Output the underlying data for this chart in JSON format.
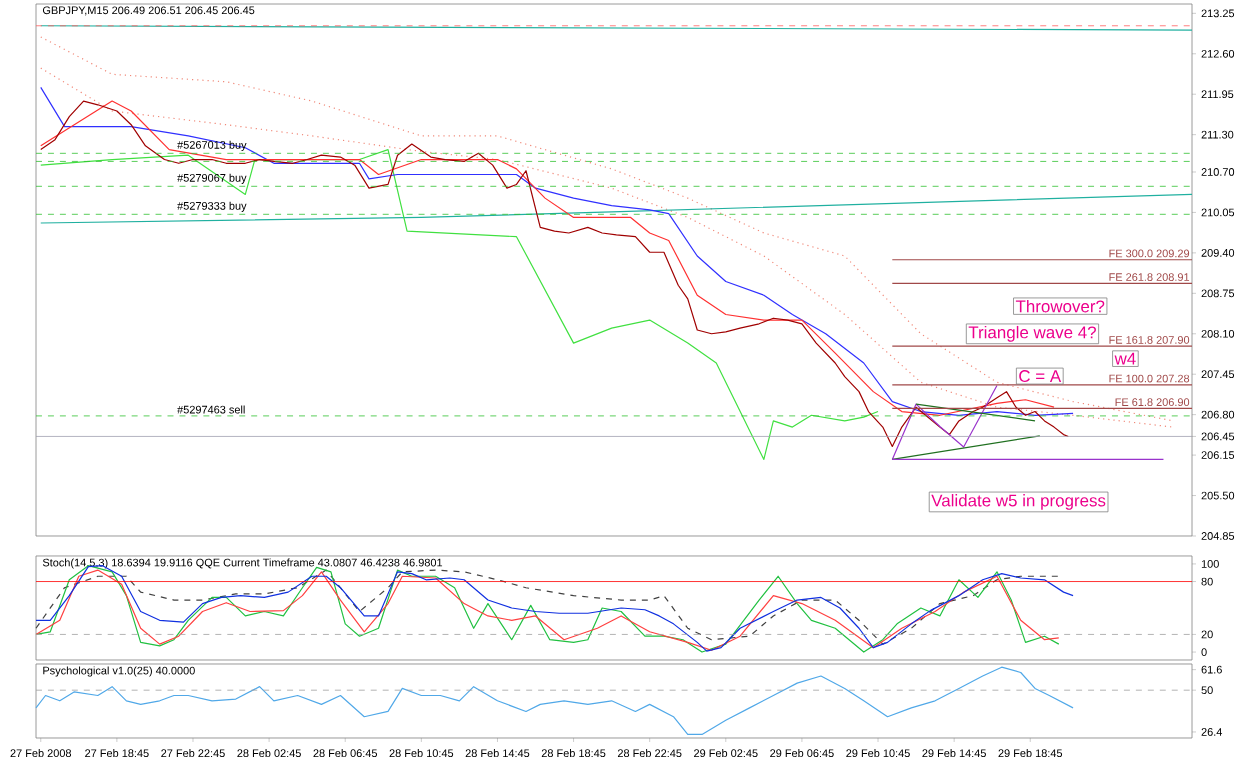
{
  "chart_data": [
    {
      "type": "line",
      "title": "GBPJPY,M15 206.49 206.51 206.45 206.45",
      "xlim": [
        "2008-02-27T14:30",
        "2008-03-01T03:15"
      ],
      "ylim": [
        204.85,
        213.4
      ],
      "tick_labels": "y",
      "yticks": [
        213.25,
        {
          "value": 212.6,
          "label": "212.60"
        },
        211.95,
        {
          "value": 211.3,
          "label": "211.30"
        },
        {
          "value": 210.7,
          "label": "210.70"
        },
        210.05,
        {
          "value": 209.4,
          "label": "209.40"
        },
        208.75,
        {
          "value": 208.1,
          "label": "208.10"
        },
        207.45,
        {
          "value": 206.8,
          "label": "206.80"
        },
        206.45,
        206.15,
        {
          "value": 205.5,
          "label": "205.50"
        },
        204.85
      ],
      "series": [
        {
          "color": "#f08878",
          "line_style": "dotted",
          "x": [
            "2008-02-27T14:45",
            "2008-02-27T18:30",
            "2008-02-28T00:30",
            "2008-02-28T05:00",
            "2008-02-28T10:45",
            "2008-02-28T14:45",
            "2008-02-28T20:45",
            "2008-02-29T00:45",
            "2008-02-29T04:45",
            "2008-02-29T09:00",
            "2008-02-29T13:00",
            "2008-02-29T17:00",
            "2008-02-29T21:00",
            "2008-03-01T02:15"
          ],
          "values": [
            212.87,
            212.27,
            212.15,
            211.84,
            211.28,
            211.28,
            210.75,
            210.28,
            209.72,
            209.35,
            208.1,
            207.32,
            207.01,
            206.7
          ]
        },
        {
          "color": "#f08878",
          "line_style": "dotted",
          "x": [
            "2008-02-27T14:45",
            "2008-02-27T18:30",
            "2008-02-28T00:30",
            "2008-02-28T05:00",
            "2008-02-28T10:45",
            "2008-02-28T14:45",
            "2008-02-28T20:45",
            "2008-02-29T00:45",
            "2008-02-29T04:45",
            "2008-02-29T09:00",
            "2008-02-29T13:00",
            "2008-02-29T17:00",
            "2008-02-29T21:00",
            "2008-03-01T02:15"
          ],
          "values": [
            212.37,
            211.68,
            211.46,
            211.28,
            211.03,
            210.9,
            210.44,
            209.97,
            209.35,
            208.41,
            207.32,
            206.92,
            206.79,
            206.6
          ]
        },
        {
          "color": "#20b0a0",
          "x": [
            "2008-02-27T14:45",
            "2008-02-28T10:45",
            "2008-02-28T20:45",
            "2008-03-01T03:15"
          ],
          "values": [
            209.88,
            209.97,
            210.06,
            210.34
          ]
        },
        {
          "color": "#20b0a0",
          "x": [
            "2008-02-27T14:45",
            "2008-03-01T03:15"
          ],
          "values": [
            213.05,
            212.98
          ]
        },
        {
          "color": "#40e040",
          "x": [
            "2008-02-27T14:45",
            "2008-02-27T18:30",
            "2008-02-27T22:30",
            "2008-02-28T01:30",
            "2008-02-28T02:00",
            "2008-02-28T07:30",
            "2008-02-28T09:00",
            "2008-02-28T10:00",
            "2008-02-28T15:45",
            "2008-02-28T18:45",
            "2008-02-28T20:45",
            "2008-02-28T22:45",
            "2008-02-29T00:45",
            "2008-02-29T02:15",
            "2008-02-29T03:15",
            "2008-02-29T04:45",
            "2008-02-29T05:15",
            "2008-02-29T06:15",
            "2008-02-29T07:15",
            "2008-02-29T09:00",
            "2008-02-29T10:00",
            "2008-02-29T10:45"
          ],
          "values": [
            210.81,
            210.9,
            210.97,
            210.34,
            210.9,
            210.9,
            211.06,
            209.75,
            209.66,
            207.95,
            208.19,
            208.32,
            207.95,
            207.63,
            207.01,
            206.08,
            206.7,
            206.6,
            206.79,
            206.7,
            206.76,
            206.85
          ]
        },
        {
          "color": "#3030ff",
          "x": [
            "2008-02-27T14:45",
            "2008-02-27T16:00",
            "2008-02-27T19:30",
            "2008-02-27T22:30",
            "2008-02-28T01:30",
            "2008-02-28T03:00",
            "2008-02-28T07:30",
            "2008-02-28T08:00",
            "2008-02-28T09:30",
            "2008-02-28T15:45",
            "2008-02-28T16:45",
            "2008-02-28T18:45",
            "2008-02-28T20:45",
            "2008-02-28T22:45",
            "2008-02-28T23:45",
            "2008-02-29T01:15",
            "2008-02-29T02:45",
            "2008-02-29T04:45",
            "2008-02-29T06:15",
            "2008-02-29T08:00",
            "2008-02-29T10:00",
            "2008-02-29T11:30",
            "2008-02-29T13:00",
            "2008-02-29T15:00",
            "2008-02-29T17:00",
            "2008-02-29T19:00",
            "2008-02-29T21:00"
          ],
          "values": [
            212.06,
            211.43,
            211.43,
            211.28,
            211.09,
            210.84,
            210.84,
            210.59,
            210.66,
            210.66,
            210.44,
            210.28,
            210.16,
            210.09,
            210.03,
            209.35,
            208.94,
            208.72,
            208.41,
            208.1,
            207.63,
            207.01,
            206.85,
            206.79,
            206.85,
            206.79,
            206.82
          ]
        },
        {
          "color": "#ff3030",
          "x": [
            "2008-02-27T14:45",
            "2008-02-27T18:30",
            "2008-02-27T19:30",
            "2008-02-27T21:30",
            "2008-02-28T00:30",
            "2008-02-28T07:30",
            "2008-02-28T08:30",
            "2008-02-28T10:45",
            "2008-02-28T14:45",
            "2008-02-28T15:45",
            "2008-02-28T17:15",
            "2008-02-28T18:45",
            "2008-02-28T21:45",
            "2008-02-28T22:45",
            "2008-02-28T23:45",
            "2008-02-29T01:15",
            "2008-02-29T02:45",
            "2008-02-29T04:45",
            "2008-02-29T06:45",
            "2008-02-29T08:30",
            "2008-02-29T10:30",
            "2008-02-29T12:00",
            "2008-02-29T14:00",
            "2008-02-29T17:00",
            "2008-02-29T18:30",
            "2008-02-29T20:00"
          ],
          "values": [
            211.12,
            211.84,
            211.68,
            211.06,
            210.9,
            210.9,
            210.66,
            210.9,
            210.9,
            210.75,
            210.28,
            209.97,
            209.97,
            209.72,
            209.6,
            208.72,
            208.41,
            208.32,
            208.32,
            207.79,
            207.17,
            206.85,
            206.79,
            206.98,
            207.04,
            206.92
          ]
        },
        {
          "color": "#a00000",
          "x": [
            "2008-02-27T14:45",
            "2008-02-27T15:30",
            "2008-02-27T16:15",
            "2008-02-27T17:00",
            "2008-02-27T17:45",
            "2008-02-27T18:45",
            "2008-02-27T19:30",
            "2008-02-27T20:15",
            "2008-02-27T21:15",
            "2008-02-27T22:00",
            "2008-02-27T22:45",
            "2008-02-27T23:45",
            "2008-02-28T00:30",
            "2008-02-28T01:30",
            "2008-02-28T02:15",
            "2008-02-28T03:00",
            "2008-02-28T04:00",
            "2008-02-28T04:45",
            "2008-02-28T05:30",
            "2008-02-28T06:30",
            "2008-02-28T07:15",
            "2008-02-28T08:00",
            "2008-02-28T09:00",
            "2008-02-28T09:30",
            "2008-02-28T10:15",
            "2008-02-28T11:15",
            "2008-02-28T12:00",
            "2008-02-28T13:00",
            "2008-02-28T13:45",
            "2008-02-28T14:30",
            "2008-02-28T15:15",
            "2008-02-28T15:45",
            "2008-02-28T16:15",
            "2008-02-28T17:00",
            "2008-02-28T17:45",
            "2008-02-28T18:30",
            "2008-02-28T19:30",
            "2008-02-28T20:15",
            "2008-02-28T21:00",
            "2008-02-28T22:00",
            "2008-02-28T22:45",
            "2008-02-28T23:30",
            "2008-02-29T00:15",
            "2008-02-29T00:45",
            "2008-02-29T01:15",
            "2008-02-29T02:00",
            "2008-02-29T02:45",
            "2008-02-29T03:30",
            "2008-02-29T04:30",
            "2008-02-29T05:15",
            "2008-02-29T06:00",
            "2008-02-29T06:45",
            "2008-02-29T07:30",
            "2008-02-29T08:30",
            "2008-02-29T09:00",
            "2008-02-29T09:45",
            "2008-02-29T10:15",
            "2008-02-29T11:00",
            "2008-02-29T11:30",
            "2008-02-29T12:00",
            "2008-02-29T12:45",
            "2008-02-29T13:15",
            "2008-02-29T14:00",
            "2008-02-29T14:30",
            "2008-02-29T15:00",
            "2008-02-29T15:45",
            "2008-02-29T16:15",
            "2008-02-29T17:00",
            "2008-02-29T17:30",
            "2008-02-29T18:00",
            "2008-02-29T18:30",
            "2008-02-29T19:00",
            "2008-02-29T19:30",
            "2008-02-29T20:00",
            "2008-02-29T20:30",
            "2008-02-29T20:45"
          ],
          "values": [
            211.06,
            211.22,
            211.59,
            211.84,
            211.78,
            211.68,
            211.46,
            211.12,
            210.9,
            210.84,
            210.9,
            210.9,
            210.84,
            210.84,
            210.9,
            210.87,
            210.84,
            210.9,
            210.97,
            210.94,
            210.81,
            210.44,
            210.5,
            210.97,
            211.15,
            210.94,
            210.9,
            210.87,
            211.0,
            210.81,
            210.44,
            210.5,
            210.72,
            209.81,
            209.75,
            209.72,
            209.81,
            209.72,
            209.69,
            209.66,
            209.41,
            209.41,
            208.88,
            208.66,
            208.16,
            208.1,
            208.13,
            208.19,
            208.26,
            208.35,
            208.32,
            208.26,
            207.95,
            207.63,
            207.41,
            207.17,
            206.85,
            206.6,
            206.29,
            206.6,
            206.92,
            206.79,
            206.6,
            206.48,
            206.7,
            206.85,
            206.92,
            207.07,
            207.17,
            206.92,
            206.79,
            206.85,
            206.7,
            206.6,
            206.48,
            206.45
          ]
        },
        {
          "color": "#9933cc",
          "x": [
            "2008-02-29T11:30",
            "2008-02-29T12:45",
            "2008-02-29T14:00",
            "2008-02-29T15:15",
            "2008-02-29T17:00"
          ],
          "values": [
            206.08,
            206.97,
            206.61,
            206.28,
            207.27
          ]
        },
        {
          "color": "#207020",
          "x": [
            "2008-02-29T12:45",
            "2008-02-29T19:00"
          ],
          "values": [
            206.97,
            206.7
          ]
        },
        {
          "color": "#207020",
          "x": [
            "2008-02-29T11:30",
            "2008-02-29T19:15"
          ],
          "values": [
            206.08,
            206.46
          ]
        },
        {
          "color": "#9933cc",
          "x": [
            "2008-02-29T11:30",
            "2008-03-01T01:45"
          ],
          "values": [
            206.08,
            206.08
          ]
        },
        {
          "name": "FE 300.0 209.29",
          "color": "#a04848",
          "x": [
            "2008-02-29T11:30",
            "2008-03-01T03:15"
          ],
          "values": [
            209.29,
            209.29
          ]
        },
        {
          "name": "FE 261.8 208.91",
          "color": "#a04848",
          "x": [
            "2008-02-29T11:30",
            "2008-03-01T03:15"
          ],
          "values": [
            208.91,
            208.91
          ]
        },
        {
          "name": "FE 161.8 207.90",
          "color": "#a04848",
          "x": [
            "2008-02-29T11:30",
            "2008-03-01T03:15"
          ],
          "values": [
            207.9,
            207.9
          ]
        },
        {
          "name": "FE 100.0 207.28",
          "color": "#a04848",
          "x": [
            "2008-02-29T11:30",
            "2008-03-01T03:15"
          ],
          "values": [
            207.28,
            207.28
          ]
        },
        {
          "name": "FE 61.8 206.90",
          "color": "#a04848",
          "x": [
            "2008-02-29T11:30",
            "2008-03-01T03:15"
          ],
          "values": [
            206.9,
            206.9
          ]
        }
      ],
      "ref_lines": [
        {
          "axis": "y",
          "value": 213.05,
          "color": "#ff6060",
          "line_style": "dashed"
        },
        {
          "axis": "y",
          "value": 211.0,
          "label": "#5267013 buy",
          "color": "#30c030",
          "line_style": "dashed"
        },
        {
          "axis": "y",
          "value": 210.87,
          "color": "#30c030",
          "line_style": "dashed"
        },
        {
          "axis": "y",
          "value": 210.47,
          "label": "#5279067 buy",
          "color": "#30c030",
          "line_style": "dashed"
        },
        {
          "axis": "y",
          "value": 210.02,
          "label": "#5279333 buy",
          "color": "#30c030",
          "line_style": "dashed"
        },
        {
          "axis": "y",
          "value": 206.78,
          "label": "#5297463 sell",
          "color": "#30c030",
          "line_style": "dashed"
        },
        {
          "axis": "y",
          "value": 206.45,
          "color": "#a0a0b0",
          "line_style": "solid"
        }
      ],
      "annotations": [
        "Throwover?",
        "Triangle wave 4?",
        {
          "text": "C = A",
          "x": "2008-02-29T19:15",
          "y": 207.42
        },
        {
          "text": "w4",
          "x": "2008-02-29T23:45",
          "y": 207.7
        },
        "Validate w5 in progress"
      ]
    },
    {
      "type": "line",
      "title": "Stoch(14,5,3) 18.6394 19.9116 QQE Current Timeframe 43.0807 46.4238 46.9801",
      "xlim": [
        "2008-02-27T14:30",
        "2008-03-01T03:15"
      ],
      "ylim": [
        -9,
        109
      ],
      "tick_labels": "y",
      "yticks": [
        100,
        80,
        20,
        0
      ],
      "series": [
        {
          "color": "#404040",
          "line_style": "dashed",
          "x": [
            "2008-02-27T14:30",
            "2008-02-27T16:00",
            "2008-02-27T17:45",
            "2008-02-27T19:15",
            "2008-02-27T20:00",
            "2008-02-27T21:45",
            "2008-02-27T23:15",
            "2008-02-28T01:00",
            "2008-02-28T02:30",
            "2008-02-28T04:15",
            "2008-02-28T05:45",
            "2008-02-28T07:30",
            "2008-02-28T09:00",
            "2008-02-28T09:45",
            "2008-02-28T11:30",
            "2008-02-28T13:00",
            "2008-02-28T14:45",
            "2008-02-28T16:15",
            "2008-02-28T18:45",
            "2008-02-28T21:15",
            "2008-02-28T22:45",
            "2008-02-28T23:30",
            "2008-02-29T00:45",
            "2008-02-29T02:00",
            "2008-02-29T04:00",
            "2008-02-29T05:15",
            "2008-02-29T06:45",
            "2008-02-29T08:30",
            "2008-02-29T09:45",
            "2008-02-29T11:00",
            "2008-02-29T12:30",
            "2008-02-29T14:00",
            "2008-02-29T15:45",
            "2008-02-29T17:00",
            "2008-02-29T18:15",
            "2008-02-29T20:15"
          ],
          "values": [
            27,
            73,
            86,
            86,
            68,
            59,
            59,
            66,
            66,
            73,
            93,
            46,
            73,
            91,
            93,
            91,
            82,
            73,
            64,
            59,
            59,
            64,
            27,
            14,
            18,
            41,
            59,
            59,
            36,
            9,
            27,
            55,
            64,
            82,
            86,
            86
          ]
        },
        {
          "color": "#20c040",
          "x": [
            "2008-02-27T14:30",
            "2008-02-27T15:15",
            "2008-02-27T16:15",
            "2008-02-27T17:15",
            "2008-02-27T18:30",
            "2008-02-27T19:15",
            "2008-02-27T20:00",
            "2008-02-27T21:00",
            "2008-02-27T21:45",
            "2008-02-27T22:30",
            "2008-02-27T23:45",
            "2008-02-28T00:30",
            "2008-02-28T01:30",
            "2008-02-28T02:30",
            "2008-02-28T03:30",
            "2008-02-28T04:30",
            "2008-02-28T05:15",
            "2008-02-28T06:00",
            "2008-02-28T06:45",
            "2008-02-28T07:30",
            "2008-02-28T08:30",
            "2008-02-28T09:30",
            "2008-02-28T10:15",
            "2008-02-28T11:30",
            "2008-02-28T12:30",
            "2008-02-28T13:30",
            "2008-02-28T14:15",
            "2008-02-28T15:30",
            "2008-02-28T16:30",
            "2008-02-28T17:30",
            "2008-02-28T18:45",
            "2008-02-28T19:30",
            "2008-02-28T20:15",
            "2008-02-28T21:15",
            "2008-02-28T22:30",
            "2008-02-28T23:30",
            "2008-02-29T00:30",
            "2008-02-29T01:30",
            "2008-02-29T02:45",
            "2008-02-29T04:30",
            "2008-02-29T05:30",
            "2008-02-29T06:30",
            "2008-02-29T07:15",
            "2008-02-29T08:30",
            "2008-02-29T10:00",
            "2008-02-29T11:00",
            "2008-02-29T11:45",
            "2008-02-29T13:00",
            "2008-02-29T14:00",
            "2008-02-29T15:00",
            "2008-02-29T16:00",
            "2008-02-29T17:00",
            "2008-02-29T17:45",
            "2008-02-29T18:30",
            "2008-02-29T19:30",
            "2008-02-29T20:15"
          ],
          "values": [
            20,
            23,
            82,
            98,
            91,
            64,
            11,
            7,
            14,
            36,
            62,
            62,
            41,
            46,
            41,
            73,
            96,
            91,
            32,
            18,
            27,
            93,
            86,
            86,
            73,
            27,
            55,
            14,
            53,
            14,
            11,
            14,
            50,
            46,
            18,
            18,
            14,
            0,
            9,
            59,
            86,
            55,
            36,
            27,
            0,
            14,
            32,
            50,
            41,
            82,
            62,
            91,
            59,
            11,
            18,
            9
          ]
        },
        {
          "color": "#ff4040",
          "x": [
            "2008-02-27T14:30",
            "2008-02-27T15:45",
            "2008-02-27T16:45",
            "2008-02-27T17:45",
            "2008-02-27T19:00",
            "2008-02-27T20:00",
            "2008-02-27T21:00",
            "2008-02-27T22:00",
            "2008-02-27T23:15",
            "2008-02-28T00:30",
            "2008-02-28T01:45",
            "2008-02-28T03:30",
            "2008-02-28T04:30",
            "2008-02-28T05:30",
            "2008-02-28T06:30",
            "2008-02-28T07:45",
            "2008-02-28T09:00",
            "2008-02-28T09:45",
            "2008-02-28T11:30",
            "2008-02-28T13:00",
            "2008-02-28T14:15",
            "2008-02-28T15:30",
            "2008-02-28T16:45",
            "2008-02-28T18:15",
            "2008-02-28T20:00",
            "2008-02-28T21:15",
            "2008-02-28T22:45",
            "2008-02-29T00:45",
            "2008-02-29T02:00",
            "2008-02-29T03:30",
            "2008-02-29T05:15",
            "2008-02-29T06:45",
            "2008-02-29T08:30",
            "2008-02-29T10:30",
            "2008-02-29T12:00",
            "2008-02-29T13:45",
            "2008-02-29T15:15",
            "2008-02-29T17:00",
            "2008-02-29T18:15",
            "2008-02-29T19:30",
            "2008-02-29T20:15"
          ],
          "values": [
            20,
            36,
            86,
            93,
            77,
            27,
            9,
            18,
            46,
            56,
            46,
            47,
            64,
            91,
            59,
            23,
            55,
            86,
            84,
            55,
            41,
            36,
            41,
            14,
            27,
            41,
            23,
            11,
            2,
            18,
            64,
            55,
            36,
            5,
            27,
            46,
            68,
            86,
            36,
            14,
            16
          ]
        },
        {
          "color": "#1030e0",
          "x": [
            "2008-02-27T14:30",
            "2008-02-27T15:15",
            "2008-02-27T16:15",
            "2008-02-27T17:15",
            "2008-02-27T18:00",
            "2008-02-27T19:00",
            "2008-02-27T20:00",
            "2008-02-27T21:00",
            "2008-02-27T22:15",
            "2008-02-27T23:15",
            "2008-02-28T00:15",
            "2008-02-28T01:15",
            "2008-02-28T02:30",
            "2008-02-28T03:45",
            "2008-02-28T05:00",
            "2008-02-28T05:45",
            "2008-02-28T06:30",
            "2008-02-28T07:45",
            "2008-02-28T08:30",
            "2008-02-28T09:30",
            "2008-02-28T10:15",
            "2008-02-28T11:00",
            "2008-02-28T12:15",
            "2008-02-28T13:00",
            "2008-02-28T14:15",
            "2008-02-28T15:30",
            "2008-02-28T16:45",
            "2008-02-28T18:00",
            "2008-02-28T19:30",
            "2008-02-28T21:15",
            "2008-02-28T22:30",
            "2008-02-28T23:15",
            "2008-02-29T00:00",
            "2008-02-29T01:15",
            "2008-02-29T01:45",
            "2008-02-29T02:30",
            "2008-02-29T03:30",
            "2008-02-29T05:15",
            "2008-02-29T06:30",
            "2008-02-29T07:45",
            "2008-02-29T08:45",
            "2008-02-29T09:45",
            "2008-02-29T10:30",
            "2008-02-29T11:15",
            "2008-02-29T12:30",
            "2008-02-29T13:30",
            "2008-02-29T15:00",
            "2008-02-29T16:15",
            "2008-02-29T17:15",
            "2008-02-29T18:15",
            "2008-02-29T19:30",
            "2008-02-29T20:30",
            "2008-02-29T21:00"
          ],
          "values": [
            36,
            36,
            64,
            97,
            98,
            86,
            46,
            36,
            34,
            55,
            62,
            64,
            62,
            68,
            86,
            86,
            73,
            41,
            41,
            91,
            89,
            82,
            84,
            82,
            59,
            50,
            46,
            44,
            44,
            50,
            48,
            41,
            32,
            11,
            1,
            5,
            27,
            46,
            59,
            62,
            50,
            27,
            5,
            11,
            32,
            47,
            64,
            82,
            89,
            84,
            82,
            68,
            64
          ]
        }
      ],
      "ref_lines": [
        {
          "axis": "y",
          "value": 80,
          "color": "#ff0000",
          "line_style": "solid"
        },
        {
          "axis": "y",
          "value": 20,
          "color": "#a0a0a0",
          "line_style": "dashed"
        }
      ]
    },
    {
      "type": "line",
      "title": "Psychological v1.0(25) 40.0000",
      "xlim": [
        "2008-02-27T14:30",
        "2008-03-01T03:15"
      ],
      "ylim": [
        23,
        64.8
      ],
      "yticks": [
        61.6,
        50,
        26.4
      ],
      "xticks": [
        {
          "value": "2008-02-27T14:45",
          "label": "27 Feb 2008"
        },
        {
          "value": "2008-02-27T18:45",
          "label": "27 Feb 18:45"
        },
        {
          "value": "2008-02-27T22:45",
          "label": "27 Feb 22:45"
        },
        {
          "value": "2008-02-28T02:45",
          "label": "28 Feb 02:45"
        },
        {
          "value": "2008-02-28T06:45",
          "label": "28 Feb 06:45"
        },
        {
          "value": "2008-02-28T10:45",
          "label": "28 Feb 10:45"
        },
        {
          "value": "2008-02-28T14:45",
          "label": "28 Feb 14:45"
        },
        {
          "value": "2008-02-28T18:45",
          "label": "28 Feb 18:45"
        },
        {
          "value": "2008-02-28T22:45",
          "label": "28 Feb 22:45"
        },
        {
          "value": "2008-02-29T02:45",
          "label": "29 Feb 02:45"
        },
        {
          "value": "2008-02-29T06:45",
          "label": "29 Feb 06:45"
        },
        {
          "value": "2008-02-29T10:45",
          "label": "29 Feb 10:45"
        },
        {
          "value": "2008-02-29T14:45",
          "label": "29 Feb 14:45"
        },
        {
          "value": "2008-02-29T18:45",
          "label": "29 Feb 18:45"
        }
      ],
      "series": [
        {
          "color": "#50a8e8",
          "x": [
            "2008-02-27T14:30",
            "2008-02-27T15:00",
            "2008-02-27T15:45",
            "2008-02-27T16:30",
            "2008-02-27T17:45",
            "2008-02-27T18:30",
            "2008-02-27T19:15",
            "2008-02-27T20:00",
            "2008-02-27T21:00",
            "2008-02-27T21:45",
            "2008-02-27T22:30",
            "2008-02-27T23:45",
            "2008-02-28T01:00",
            "2008-02-28T02:15",
            "2008-02-28T03:00",
            "2008-02-28T04:15",
            "2008-02-28T05:30",
            "2008-02-28T06:30",
            "2008-02-28T07:45",
            "2008-02-28T09:00",
            "2008-02-28T09:45",
            "2008-02-28T10:45",
            "2008-02-28T11:45",
            "2008-02-28T12:45",
            "2008-02-28T13:30",
            "2008-02-28T14:45",
            "2008-02-28T16:15",
            "2008-02-28T17:00",
            "2008-02-28T18:15",
            "2008-02-28T19:30",
            "2008-02-28T20:45",
            "2008-02-28T22:00",
            "2008-02-28T22:45",
            "2008-02-29T00:00",
            "2008-02-29T00:45",
            "2008-02-29T01:30",
            "2008-02-29T02:45",
            "2008-02-29T04:00",
            "2008-02-29T05:15",
            "2008-02-29T06:30",
            "2008-02-29T07:45",
            "2008-02-29T09:00",
            "2008-02-29T10:00",
            "2008-02-29T11:15",
            "2008-02-29T12:30",
            "2008-02-29T13:45",
            "2008-02-29T15:00",
            "2008-02-29T16:15",
            "2008-02-29T17:15",
            "2008-02-29T18:15",
            "2008-02-29T19:00",
            "2008-02-29T19:45",
            "2008-02-29T21:00"
          ],
          "values": [
            40,
            47,
            44,
            49,
            47,
            52,
            44,
            42,
            44,
            47,
            47,
            44,
            45,
            52,
            44,
            47,
            42,
            47,
            35,
            38,
            51,
            47,
            47,
            44,
            52,
            44,
            38,
            42,
            44,
            42,
            44,
            38,
            42,
            35,
            25,
            25,
            33,
            40,
            47,
            54,
            58,
            51,
            44,
            35,
            40,
            44,
            51,
            58,
            63,
            60,
            51,
            47,
            40
          ]
        }
      ],
      "ref_lines": [
        {
          "axis": "y",
          "value": 50,
          "color": "#a0a0a0",
          "line_style": "dashed"
        }
      ]
    }
  ]
}
